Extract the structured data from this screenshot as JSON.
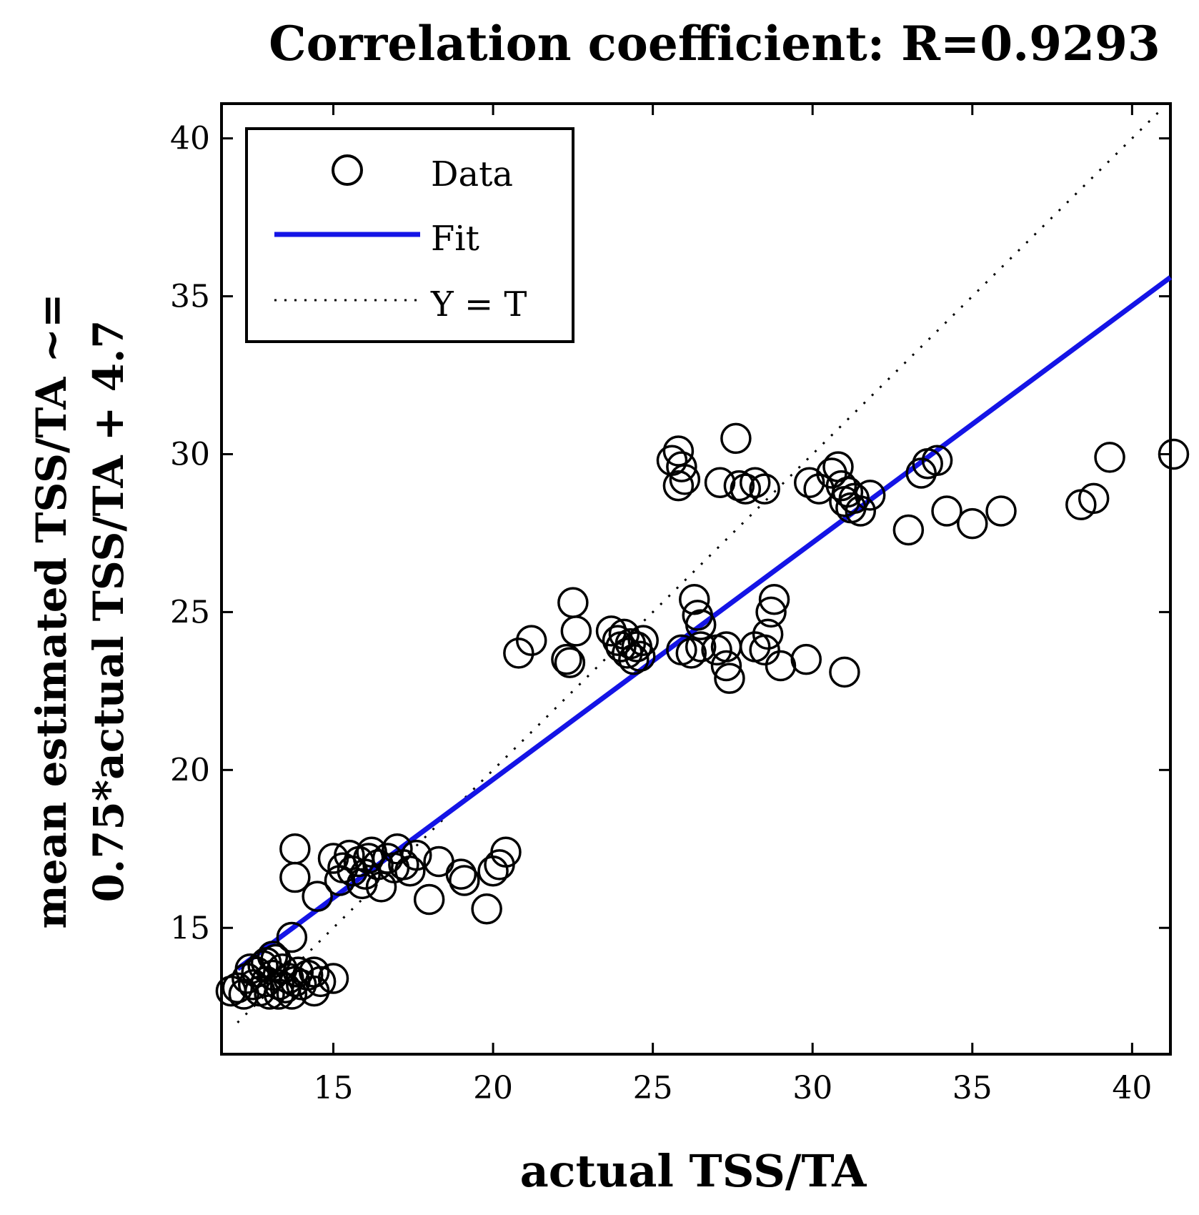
{
  "chart_data": {
    "type": "scatter",
    "title": "Correlation coefficient: R=0.9293",
    "xlabel": "actual TSS/TA",
    "ylabel_lines": [
      "mean estimated TSS/TA ~=",
      "0.75*actual TSS/TA + 4.7"
    ],
    "xlim": [
      11.5,
      41.2
    ],
    "ylim": [
      11.0,
      41.1
    ],
    "xticks": [
      15,
      20,
      25,
      30,
      35,
      40
    ],
    "yticks": [
      15,
      20,
      25,
      30,
      35,
      40
    ],
    "grid": false,
    "legend": {
      "placement": "top-left",
      "entries": [
        {
          "label": "Data",
          "kind": "marker"
        },
        {
          "label": "Fit",
          "kind": "line"
        },
        {
          "label": "Y = T",
          "kind": "dotted"
        }
      ]
    },
    "fit": {
      "slope": 0.75,
      "intercept": 4.7,
      "x_range": [
        12,
        41.2
      ],
      "color": "#1414e6"
    },
    "identity_line": {
      "x_range": [
        12,
        41
      ]
    },
    "series": [
      {
        "name": "Data",
        "points": [
          [
            11.8,
            13.0
          ],
          [
            12.0,
            13.1
          ],
          [
            12.2,
            12.9
          ],
          [
            12.3,
            13.4
          ],
          [
            12.5,
            13.2
          ],
          [
            12.6,
            13.6
          ],
          [
            12.7,
            13.0
          ],
          [
            12.8,
            13.8
          ],
          [
            12.9,
            13.3
          ],
          [
            13.0,
            12.9
          ],
          [
            13.1,
            13.5
          ],
          [
            13.2,
            14.0
          ],
          [
            13.3,
            13.2
          ],
          [
            13.4,
            13.7
          ],
          [
            13.5,
            13.1
          ],
          [
            13.6,
            13.4
          ],
          [
            13.7,
            12.9
          ],
          [
            13.8,
            13.3
          ],
          [
            13.9,
            13.6
          ],
          [
            14.0,
            13.2
          ],
          [
            14.2,
            13.5
          ],
          [
            14.4,
            13.0
          ],
          [
            14.6,
            13.3
          ],
          [
            15.0,
            13.4
          ],
          [
            13.7,
            14.7
          ],
          [
            12.4,
            13.7
          ],
          [
            12.9,
            13.9
          ],
          [
            13.3,
            12.9
          ],
          [
            13.1,
            14.1
          ],
          [
            14.4,
            13.6
          ],
          [
            13.8,
            17.5
          ],
          [
            13.8,
            16.6
          ],
          [
            14.5,
            16.0
          ],
          [
            15.0,
            17.2
          ],
          [
            15.2,
            16.5
          ],
          [
            15.3,
            16.9
          ],
          [
            15.5,
            17.3
          ],
          [
            15.6,
            16.8
          ],
          [
            15.8,
            17.1
          ],
          [
            16.0,
            16.7
          ],
          [
            16.2,
            17.4
          ],
          [
            16.4,
            17.0
          ],
          [
            16.5,
            16.3
          ],
          [
            16.7,
            17.2
          ],
          [
            16.9,
            16.9
          ],
          [
            17.0,
            17.5
          ],
          [
            17.2,
            17.0
          ],
          [
            17.4,
            16.8
          ],
          [
            17.6,
            17.3
          ],
          [
            18.0,
            15.9
          ],
          [
            18.3,
            17.1
          ],
          [
            19.0,
            16.7
          ],
          [
            19.1,
            16.5
          ],
          [
            19.8,
            15.6
          ],
          [
            20.0,
            16.8
          ],
          [
            20.2,
            17.0
          ],
          [
            20.4,
            17.4
          ],
          [
            16.1,
            17.2
          ],
          [
            15.9,
            16.4
          ],
          [
            20.8,
            23.7
          ],
          [
            21.2,
            24.1
          ],
          [
            22.3,
            23.5
          ],
          [
            22.4,
            23.4
          ],
          [
            22.5,
            25.3
          ],
          [
            22.6,
            24.4
          ],
          [
            23.7,
            24.4
          ],
          [
            23.9,
            24.1
          ],
          [
            24.0,
            23.9
          ],
          [
            24.1,
            24.3
          ],
          [
            24.2,
            23.7
          ],
          [
            24.3,
            24.0
          ],
          [
            24.4,
            23.5
          ],
          [
            24.5,
            23.9
          ],
          [
            24.6,
            23.6
          ],
          [
            24.7,
            24.1
          ],
          [
            25.9,
            23.8
          ],
          [
            26.2,
            23.7
          ],
          [
            26.3,
            25.4
          ],
          [
            26.4,
            24.9
          ],
          [
            26.5,
            24.6
          ],
          [
            26.5,
            23.9
          ],
          [
            27.0,
            23.8
          ],
          [
            27.3,
            23.9
          ],
          [
            27.3,
            23.3
          ],
          [
            27.4,
            22.9
          ],
          [
            28.2,
            23.9
          ],
          [
            28.5,
            23.8
          ],
          [
            28.6,
            24.3
          ],
          [
            28.7,
            25.0
          ],
          [
            28.8,
            25.4
          ],
          [
            29.0,
            23.3
          ],
          [
            29.8,
            23.5
          ],
          [
            31.0,
            23.1
          ],
          [
            25.6,
            29.8
          ],
          [
            25.8,
            30.1
          ],
          [
            25.9,
            29.6
          ],
          [
            26.0,
            29.2
          ],
          [
            25.8,
            29.0
          ],
          [
            27.1,
            29.1
          ],
          [
            27.6,
            30.5
          ],
          [
            27.7,
            29.0
          ],
          [
            27.9,
            28.9
          ],
          [
            28.2,
            29.1
          ],
          [
            28.5,
            28.9
          ],
          [
            29.9,
            29.1
          ],
          [
            30.2,
            28.9
          ],
          [
            30.6,
            29.4
          ],
          [
            30.8,
            29.6
          ],
          [
            30.9,
            29.0
          ],
          [
            31.0,
            28.5
          ],
          [
            31.1,
            28.8
          ],
          [
            31.2,
            28.3
          ],
          [
            31.3,
            28.6
          ],
          [
            31.5,
            28.2
          ],
          [
            31.8,
            28.7
          ],
          [
            33.0,
            27.6
          ],
          [
            33.4,
            29.4
          ],
          [
            33.6,
            29.7
          ],
          [
            33.9,
            29.8
          ],
          [
            34.2,
            28.2
          ],
          [
            35.0,
            27.8
          ],
          [
            35.9,
            28.2
          ],
          [
            38.4,
            28.4
          ],
          [
            38.8,
            28.6
          ],
          [
            39.3,
            29.9
          ],
          [
            41.3,
            30.0
          ]
        ]
      }
    ]
  }
}
